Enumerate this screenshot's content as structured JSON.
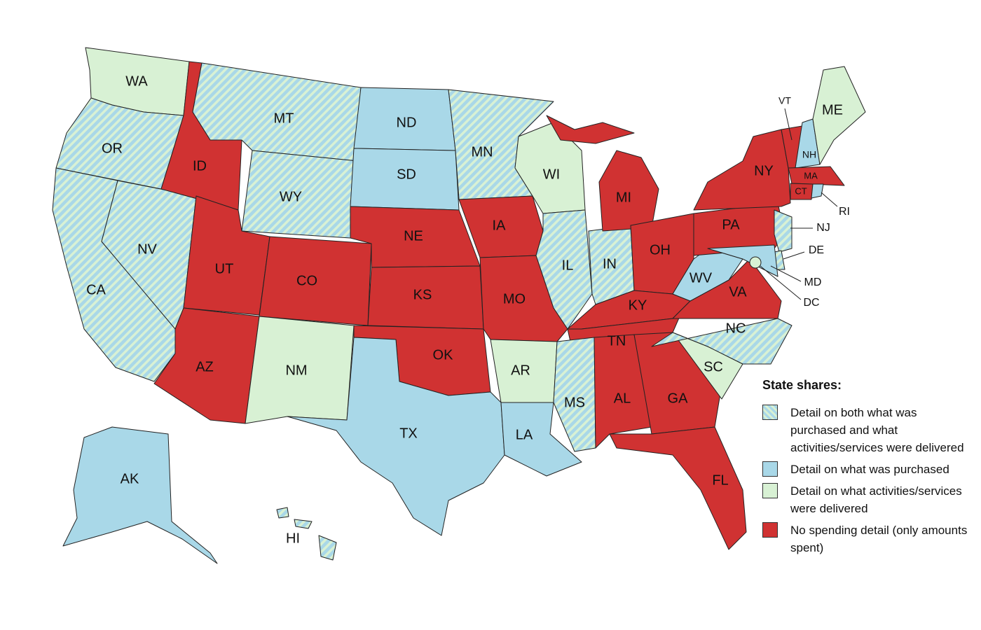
{
  "map": {
    "legend": {
      "title": "State shares:",
      "items": [
        {
          "label": "Detail on both what was purchased and what activities/services were delivered",
          "color": "#a9d8e8",
          "stripe_color": "#d8f1d4",
          "style": "hatched"
        },
        {
          "label": "Detail on what was purchased",
          "color": "#a9d8e8",
          "style": "solid"
        },
        {
          "label": "Detail on what activities/services were delivered",
          "color": "#d8f1d4",
          "style": "solid"
        },
        {
          "label": "No spending detail (only amounts spent)",
          "color": "#d03232",
          "style": "solid"
        }
      ]
    },
    "states": [
      {
        "label": "WA",
        "category": 2
      },
      {
        "label": "OR",
        "category": 0
      },
      {
        "label": "CA",
        "category": 0
      },
      {
        "label": "NV",
        "category": 0
      },
      {
        "label": "ID",
        "category": 3
      },
      {
        "label": "MT",
        "category": 0
      },
      {
        "label": "WY",
        "category": 0
      },
      {
        "label": "UT",
        "category": 3
      },
      {
        "label": "CO",
        "category": 3
      },
      {
        "label": "AZ",
        "category": 3
      },
      {
        "label": "NM",
        "category": 2
      },
      {
        "label": "ND",
        "category": 1
      },
      {
        "label": "SD",
        "category": 1
      },
      {
        "label": "NE",
        "category": 3
      },
      {
        "label": "KS",
        "category": 3
      },
      {
        "label": "OK",
        "category": 3
      },
      {
        "label": "TX",
        "category": 1
      },
      {
        "label": "MN",
        "category": 0
      },
      {
        "label": "IA",
        "category": 3
      },
      {
        "label": "MO",
        "category": 3
      },
      {
        "label": "AR",
        "category": 2
      },
      {
        "label": "LA",
        "category": 1
      },
      {
        "label": "WI",
        "category": 2
      },
      {
        "label": "IL",
        "category": 0
      },
      {
        "label": "IN",
        "category": 0
      },
      {
        "label": "MI",
        "category": 3
      },
      {
        "label": "OH",
        "category": 3
      },
      {
        "label": "KY",
        "category": 3
      },
      {
        "label": "TN",
        "category": 3
      },
      {
        "label": "MS",
        "category": 0
      },
      {
        "label": "AL",
        "category": 3
      },
      {
        "label": "GA",
        "category": 3
      },
      {
        "label": "FL",
        "category": 3
      },
      {
        "label": "SC",
        "category": 2
      },
      {
        "label": "NC",
        "category": 0
      },
      {
        "label": "VA",
        "category": 3
      },
      {
        "label": "WV",
        "category": 1
      },
      {
        "label": "PA",
        "category": 3
      },
      {
        "label": "NY",
        "category": 3
      },
      {
        "label": "VT",
        "category": 3
      },
      {
        "label": "NH",
        "category": 1
      },
      {
        "label": "ME",
        "category": 2
      },
      {
        "label": "MA",
        "category": 3
      },
      {
        "label": "CT",
        "category": 3
      },
      {
        "label": "RI",
        "category": 1
      },
      {
        "label": "NJ",
        "category": 0
      },
      {
        "label": "DE",
        "category": 0
      },
      {
        "label": "MD",
        "category": 1
      },
      {
        "label": "DC",
        "category": 2
      },
      {
        "label": "AK",
        "category": 1
      },
      {
        "label": "HI",
        "category": 0
      }
    ]
  }
}
